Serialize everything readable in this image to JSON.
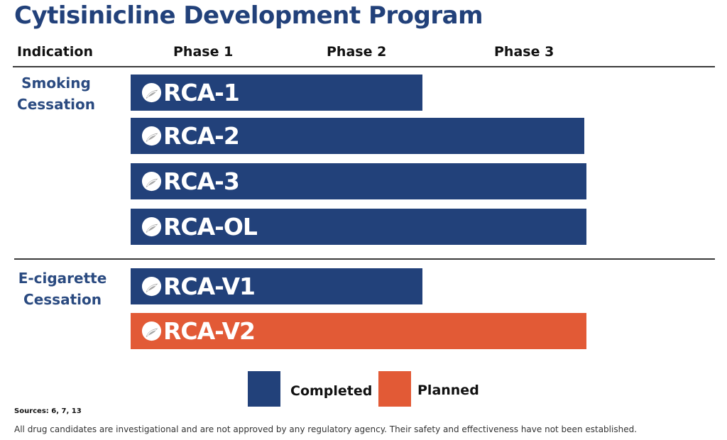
{
  "title": "Cytisinicline Development Program",
  "colors": {
    "completed": "#22417a",
    "planned": "#e25a36",
    "title": "#22417a"
  },
  "chart_data": {
    "type": "bar",
    "orientation": "horizontal",
    "title": "Cytisinicline Development Program",
    "column_headers": [
      "Indication",
      "Phase 1",
      "Phase 2",
      "Phase 3"
    ],
    "phases": [
      "Phase 1",
      "Phase 2",
      "Phase 3"
    ],
    "groups": [
      {
        "indication": "Smoking\nCessation",
        "trials": [
          {
            "name": "ORCA-1",
            "status": "Completed",
            "phase_reached": "Phase 2"
          },
          {
            "name": "ORCA-2",
            "status": "Completed",
            "phase_reached": "Phase 3"
          },
          {
            "name": "ORCA-3",
            "status": "Completed",
            "phase_reached": "Phase 3"
          },
          {
            "name": "ORCA-OL",
            "status": "Completed",
            "phase_reached": "Phase 3"
          }
        ]
      },
      {
        "indication": "E-cigarette\nCessation",
        "trials": [
          {
            "name": "ORCA-V1",
            "status": "Completed",
            "phase_reached": "Phase 2"
          },
          {
            "name": "ORCA-V2",
            "status": "Planned",
            "phase_reached": "Phase 3"
          }
        ]
      }
    ],
    "legend": [
      {
        "label": "Completed",
        "color": "#22417a"
      },
      {
        "label": "Planned",
        "color": "#e25a36"
      }
    ],
    "legend_position": "bottom-center"
  },
  "footer": {
    "sources": "Sources: 6, 7, 13",
    "disclaimer": "All drug candidates are investigational and are not approved by any regulatory agency. Their safety and effectiveness have not been established."
  }
}
